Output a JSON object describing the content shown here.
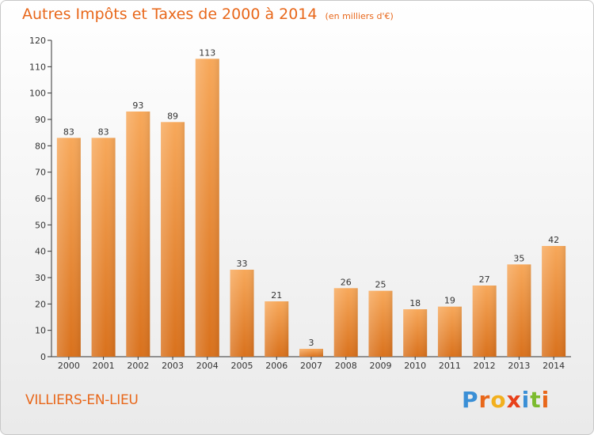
{
  "title": "Autres Impôts et Taxes de 2000 à 2014",
  "subtitle": "(en milliers d'€)",
  "commune": "VILLIERS-EN-LIEU",
  "logo": {
    "text": "Proxiti",
    "letters": [
      {
        "ch": "P",
        "color": "#3a8fd6"
      },
      {
        "ch": "r",
        "color": "#e8671a"
      },
      {
        "ch": "o",
        "color": "#f2b01e"
      },
      {
        "ch": "x",
        "color": "#e8401a"
      },
      {
        "ch": "i",
        "color": "#3a8fd6"
      },
      {
        "ch": "t",
        "color": "#7cbb2e"
      },
      {
        "ch": "i",
        "color": "#e8671a"
      }
    ]
  },
  "colors": {
    "accent": "#e8671a",
    "bar_top": "#f7a85a",
    "bar_bottom": "#d9711c",
    "axis": "#333333",
    "grid": "#d8d8d8"
  },
  "chart_data": {
    "type": "bar",
    "title": "Autres Impôts et Taxes de 2000 à 2014",
    "subtitle": "(en milliers d'€)",
    "categories": [
      "2000",
      "2001",
      "2002",
      "2003",
      "2004",
      "2005",
      "2006",
      "2007",
      "2008",
      "2009",
      "2010",
      "2011",
      "2012",
      "2013",
      "2014"
    ],
    "values": [
      83,
      83,
      93,
      89,
      113,
      33,
      21,
      3,
      26,
      25,
      18,
      19,
      27,
      35,
      42
    ],
    "ylim": [
      0,
      120
    ],
    "yticks": [
      0,
      10,
      20,
      30,
      40,
      50,
      60,
      70,
      80,
      90,
      100,
      110,
      120
    ],
    "grid": false,
    "legend": "none"
  }
}
